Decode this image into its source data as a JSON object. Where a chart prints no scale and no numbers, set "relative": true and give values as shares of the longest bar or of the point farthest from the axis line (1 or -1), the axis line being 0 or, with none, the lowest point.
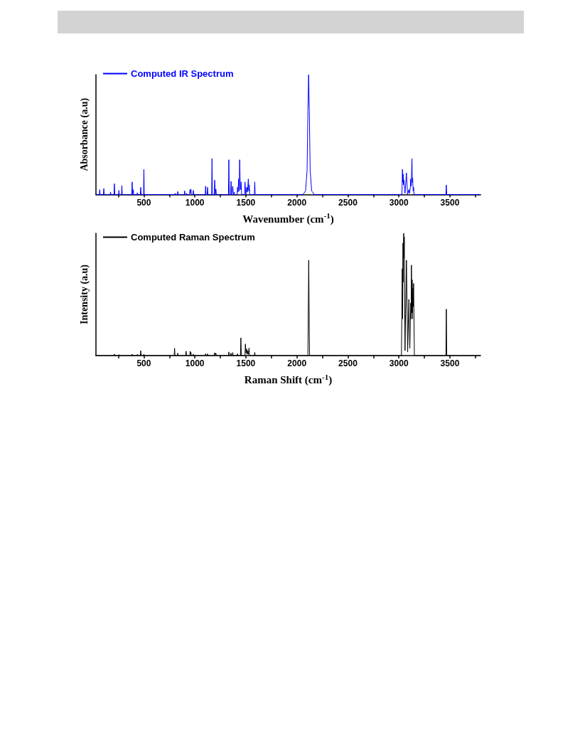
{
  "chart_data": [
    {
      "type": "line",
      "xlabel": "Wavenumber (cm$^{-1}$)",
      "ylabel": "Absorbance (a.u)",
      "relative": true,
      "legend": "top left",
      "grid": false,
      "marker": "none",
      "line_style": "solid",
      "xlim": [
        30,
        3800
      ],
      "xticks": [
        {
          "value": 250,
          "label": null
        },
        500,
        {
          "value": 750,
          "label": null
        },
        1000,
        {
          "value": 1250,
          "label": null
        },
        1500,
        {
          "value": 1750,
          "label": null
        },
        2000,
        {
          "value": 2250,
          "label": null
        },
        2500,
        {
          "value": 2750,
          "label": null
        },
        3000,
        {
          "value": 3250,
          "label": null
        },
        3500,
        {
          "value": 3750,
          "label": null
        }
      ],
      "series": [
        {
          "name": "Computed IR Spectrum",
          "color": "#0000ff",
          "x": [
            30,
            63,
            67,
            71,
            103,
            107,
            111,
            169,
            173,
            177,
            207,
            211,
            215,
            251,
            255,
            259,
            280,
            284,
            288,
            381,
            385,
            389,
            392,
            396,
            400,
            432,
            436,
            440,
            465,
            469,
            473,
            496,
            500,
            504,
            802,
            806,
            810,
            828,
            832,
            836,
            896,
            900,
            904,
            915,
            919,
            923,
            948,
            952,
            956,
            961,
            965,
            981,
            985,
            989,
            1101,
            1105,
            1109,
            1120,
            1124,
            1128,
            1164,
            1168,
            1172,
            1190,
            1194,
            1200,
            1206,
            1210,
            1329,
            1333,
            1337,
            1350,
            1354,
            1362,
            1371,
            1378,
            1385,
            1389,
            1414,
            1418,
            1423,
            1429,
            1434,
            1439,
            1446,
            1453,
            1458,
            1487,
            1491,
            1500,
            1509,
            1516,
            1524,
            1529,
            1533,
            1538,
            1583,
            1587,
            1591,
            2060,
            2085,
            2100,
            2108,
            2115,
            2122,
            2130,
            2145,
            2170,
            3030,
            3035,
            3038,
            3042,
            3045,
            3049,
            3060,
            3074,
            3085,
            3098,
            3104,
            3112,
            3116,
            3121,
            3128,
            3132,
            3135,
            3140,
            3144,
            3149,
            3461,
            3465,
            3469,
            3800
          ],
          "values": [
            0,
            0,
            0.04,
            0,
            0,
            0.05,
            0,
            0,
            0.02,
            0,
            0,
            0.09,
            0,
            0,
            0.035,
            0,
            0,
            0.075,
            0,
            0,
            0.105,
            0,
            0,
            0.04,
            0,
            0,
            0.015,
            0,
            0,
            0.06,
            0,
            0,
            0.21,
            0,
            0,
            0.01,
            0,
            0,
            0.025,
            0,
            0,
            0.03,
            0,
            0,
            0.01,
            0,
            0,
            0.04,
            0.01,
            0.045,
            0,
            0,
            0.035,
            0,
            0,
            0.07,
            0,
            0,
            0.06,
            0,
            0,
            0.3,
            0,
            0,
            0.12,
            0,
            0.045,
            0,
            0,
            0.29,
            0,
            0,
            0.11,
            0,
            0.07,
            0,
            0.02,
            0,
            0,
            0.06,
            0.02,
            0.13,
            0.03,
            0.29,
            0.04,
            0.105,
            0,
            0,
            0.105,
            0,
            0.06,
            0.02,
            0.13,
            0.03,
            0.08,
            0,
            0,
            0.105,
            0,
            0,
            0.03,
            0.2,
            0.7,
            1,
            0.7,
            0.2,
            0.03,
            0,
            0,
            0.21,
            0.1,
            0.17,
            0.08,
            0.12,
            0.01,
            0.18,
            0,
            0.04,
            0.01,
            0.06,
            0.13,
            0.07,
            0.3,
            0.1,
            0.14,
            0.03,
            0.06,
            0,
            0,
            0.08,
            0,
            0
          ]
        }
      ]
    },
    {
      "type": "line",
      "xlabel": "Raman Shift (cm$^{-1}$)",
      "ylabel": "Intensity (a.u)",
      "relative": true,
      "legend": "top left",
      "grid": false,
      "marker": "none",
      "line_style": "solid",
      "xlim": [
        30,
        3800
      ],
      "xticks": [
        {
          "value": 250,
          "label": null
        },
        500,
        {
          "value": 750,
          "label": null
        },
        1000,
        {
          "value": 1250,
          "label": null
        },
        1500,
        {
          "value": 1750,
          "label": null
        },
        2000,
        {
          "value": 2250,
          "label": null
        },
        2500,
        {
          "value": 2750,
          "label": null
        },
        3000,
        {
          "value": 3250,
          "label": null
        },
        3500,
        {
          "value": 3750,
          "label": null
        }
      ],
      "series": [
        {
          "name": "Computed Raman Spectrum",
          "color": "#000000",
          "x": [
            30,
            207,
            211,
            215,
            251,
            255,
            259,
            280,
            284,
            288,
            381,
            385,
            389,
            432,
            436,
            440,
            465,
            469,
            473,
            496,
            500,
            504,
            797,
            801,
            805,
            828,
            832,
            836,
            910,
            914,
            918,
            950,
            954,
            958,
            961,
            965,
            981,
            985,
            989,
            1101,
            1105,
            1109,
            1120,
            1124,
            1128,
            1190,
            1194,
            1200,
            1206,
            1210,
            1329,
            1333,
            1337,
            1350,
            1354,
            1358,
            1367,
            1371,
            1375,
            1414,
            1418,
            1422,
            1447,
            1451,
            1455,
            1491,
            1495,
            1501,
            1507,
            1513,
            1519,
            1525,
            1531,
            1535,
            1583,
            1587,
            1591,
            2108,
            2116,
            2124,
            3025,
            3033,
            3037,
            3040,
            3043,
            3047,
            3050,
            3053,
            3060,
            3074,
            3086,
            3098,
            3107,
            3116,
            3120,
            3123,
            3127,
            3130,
            3134,
            3137,
            3140,
            3144,
            3152,
            3461,
            3465,
            3469,
            3800
          ],
          "values": [
            0,
            0,
            0.012,
            0,
            0,
            0.008,
            0,
            0,
            0.006,
            0,
            0,
            0.012,
            0,
            0,
            0.01,
            0,
            0,
            0.04,
            0,
            0,
            0.012,
            0,
            0,
            0.06,
            0,
            0,
            0.02,
            0,
            0,
            0.036,
            0,
            0,
            0.036,
            0.01,
            0.026,
            0,
            0,
            0.012,
            0,
            0,
            0.015,
            0,
            0,
            0.015,
            0,
            0,
            0.022,
            0.005,
            0.02,
            0,
            0,
            0.03,
            0,
            0,
            0.02,
            0,
            0,
            0.025,
            0,
            0,
            0.015,
            0,
            0,
            0.145,
            0,
            0,
            0.095,
            0.02,
            0.055,
            0.01,
            0.04,
            0.01,
            0.062,
            0,
            0,
            0.026,
            0,
            0,
            0.78,
            0,
            0,
            0.71,
            0.3,
            0.92,
            0.6,
            1,
            0.8,
            0.97,
            0.04,
            0.78,
            0.03,
            0.46,
            0.06,
            0.43,
            0.3,
            0.74,
            0.35,
            0.62,
            0.3,
            0.55,
            0.4,
            0.59,
            0,
            0,
            0.38,
            0,
            0
          ]
        }
      ]
    }
  ]
}
